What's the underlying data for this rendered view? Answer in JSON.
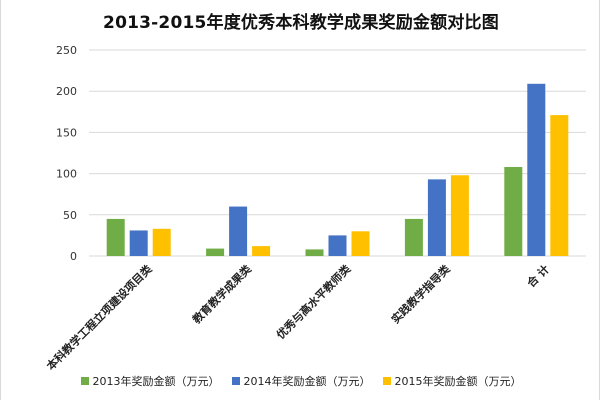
{
  "chart_data": {
    "type": "bar",
    "title": "2013-2015年度优秀本科教学成果奖励金额对比图",
    "categories": [
      "本科教学工程立项建设项目类",
      "教育教学成果类",
      "优秀与高水平教师类",
      "实践教学指导类",
      "合 计"
    ],
    "series": [
      {
        "name": "2013年奖励金额（万元）",
        "color": "#70ad47",
        "values": [
          45,
          9,
          8,
          45,
          108
        ]
      },
      {
        "name": "2014年奖励金额（万元）",
        "color": "#4472c4",
        "values": [
          31,
          60,
          25,
          93,
          209
        ]
      },
      {
        "name": "2015年奖励金额（万元）",
        "color": "#ffc000",
        "values": [
          33,
          12,
          30,
          98,
          171
        ]
      }
    ],
    "y_ticks": [
      0,
      50,
      100,
      150,
      200,
      250
    ],
    "ylim": [
      0,
      250
    ],
    "grid": true,
    "legend_position": "bottom",
    "xlabel": "",
    "ylabel": ""
  }
}
